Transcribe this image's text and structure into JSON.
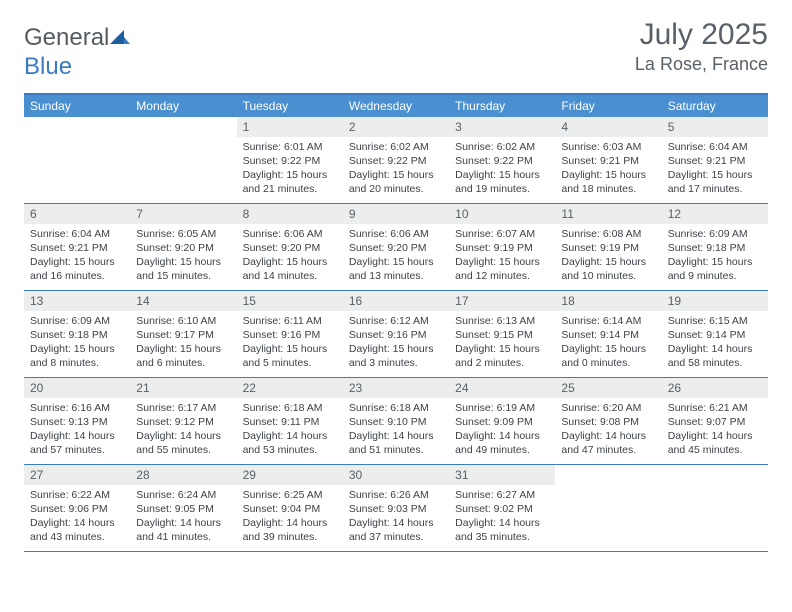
{
  "brand": {
    "part1": "General",
    "part2": "Blue"
  },
  "title": "July 2025",
  "location": "La Rose, France",
  "colors": {
    "header_bg": "#4a8fd0",
    "border": "#3b7bbf",
    "daynum_bg": "#eceded",
    "text_gray": "#5a6068"
  },
  "day_names": [
    "Sunday",
    "Monday",
    "Tuesday",
    "Wednesday",
    "Thursday",
    "Friday",
    "Saturday"
  ],
  "weeks": [
    [
      null,
      null,
      {
        "n": "1",
        "sr": "6:01 AM",
        "ss": "9:22 PM",
        "dl": "15 hours and 21 minutes."
      },
      {
        "n": "2",
        "sr": "6:02 AM",
        "ss": "9:22 PM",
        "dl": "15 hours and 20 minutes."
      },
      {
        "n": "3",
        "sr": "6:02 AM",
        "ss": "9:22 PM",
        "dl": "15 hours and 19 minutes."
      },
      {
        "n": "4",
        "sr": "6:03 AM",
        "ss": "9:21 PM",
        "dl": "15 hours and 18 minutes."
      },
      {
        "n": "5",
        "sr": "6:04 AM",
        "ss": "9:21 PM",
        "dl": "15 hours and 17 minutes."
      }
    ],
    [
      {
        "n": "6",
        "sr": "6:04 AM",
        "ss": "9:21 PM",
        "dl": "15 hours and 16 minutes."
      },
      {
        "n": "7",
        "sr": "6:05 AM",
        "ss": "9:20 PM",
        "dl": "15 hours and 15 minutes."
      },
      {
        "n": "8",
        "sr": "6:06 AM",
        "ss": "9:20 PM",
        "dl": "15 hours and 14 minutes."
      },
      {
        "n": "9",
        "sr": "6:06 AM",
        "ss": "9:20 PM",
        "dl": "15 hours and 13 minutes."
      },
      {
        "n": "10",
        "sr": "6:07 AM",
        "ss": "9:19 PM",
        "dl": "15 hours and 12 minutes."
      },
      {
        "n": "11",
        "sr": "6:08 AM",
        "ss": "9:19 PM",
        "dl": "15 hours and 10 minutes."
      },
      {
        "n": "12",
        "sr": "6:09 AM",
        "ss": "9:18 PM",
        "dl": "15 hours and 9 minutes."
      }
    ],
    [
      {
        "n": "13",
        "sr": "6:09 AM",
        "ss": "9:18 PM",
        "dl": "15 hours and 8 minutes."
      },
      {
        "n": "14",
        "sr": "6:10 AM",
        "ss": "9:17 PM",
        "dl": "15 hours and 6 minutes."
      },
      {
        "n": "15",
        "sr": "6:11 AM",
        "ss": "9:16 PM",
        "dl": "15 hours and 5 minutes."
      },
      {
        "n": "16",
        "sr": "6:12 AM",
        "ss": "9:16 PM",
        "dl": "15 hours and 3 minutes."
      },
      {
        "n": "17",
        "sr": "6:13 AM",
        "ss": "9:15 PM",
        "dl": "15 hours and 2 minutes."
      },
      {
        "n": "18",
        "sr": "6:14 AM",
        "ss": "9:14 PM",
        "dl": "15 hours and 0 minutes."
      },
      {
        "n": "19",
        "sr": "6:15 AM",
        "ss": "9:14 PM",
        "dl": "14 hours and 58 minutes."
      }
    ],
    [
      {
        "n": "20",
        "sr": "6:16 AM",
        "ss": "9:13 PM",
        "dl": "14 hours and 57 minutes."
      },
      {
        "n": "21",
        "sr": "6:17 AM",
        "ss": "9:12 PM",
        "dl": "14 hours and 55 minutes."
      },
      {
        "n": "22",
        "sr": "6:18 AM",
        "ss": "9:11 PM",
        "dl": "14 hours and 53 minutes."
      },
      {
        "n": "23",
        "sr": "6:18 AM",
        "ss": "9:10 PM",
        "dl": "14 hours and 51 minutes."
      },
      {
        "n": "24",
        "sr": "6:19 AM",
        "ss": "9:09 PM",
        "dl": "14 hours and 49 minutes."
      },
      {
        "n": "25",
        "sr": "6:20 AM",
        "ss": "9:08 PM",
        "dl": "14 hours and 47 minutes."
      },
      {
        "n": "26",
        "sr": "6:21 AM",
        "ss": "9:07 PM",
        "dl": "14 hours and 45 minutes."
      }
    ],
    [
      {
        "n": "27",
        "sr": "6:22 AM",
        "ss": "9:06 PM",
        "dl": "14 hours and 43 minutes."
      },
      {
        "n": "28",
        "sr": "6:24 AM",
        "ss": "9:05 PM",
        "dl": "14 hours and 41 minutes."
      },
      {
        "n": "29",
        "sr": "6:25 AM",
        "ss": "9:04 PM",
        "dl": "14 hours and 39 minutes."
      },
      {
        "n": "30",
        "sr": "6:26 AM",
        "ss": "9:03 PM",
        "dl": "14 hours and 37 minutes."
      },
      {
        "n": "31",
        "sr": "6:27 AM",
        "ss": "9:02 PM",
        "dl": "14 hours and 35 minutes."
      },
      null,
      null
    ]
  ],
  "labels": {
    "sunrise": "Sunrise:",
    "sunset": "Sunset:",
    "daylight": "Daylight:"
  }
}
